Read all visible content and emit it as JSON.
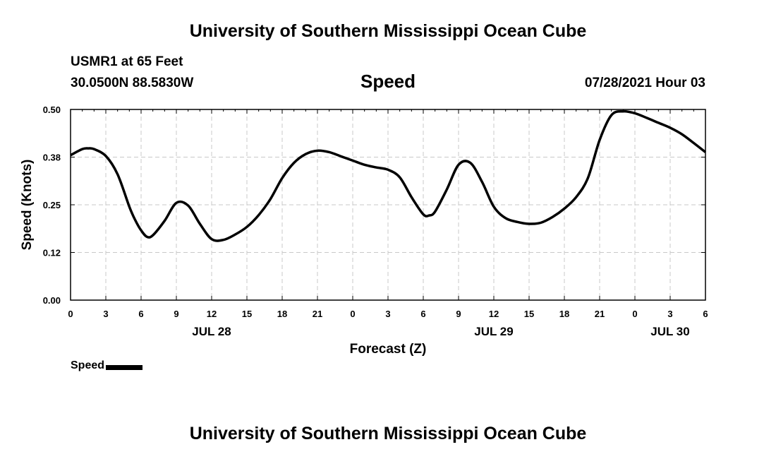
{
  "header": {
    "title": "University of Southern Mississippi Ocean Cube",
    "station": "USMR1 at 65 Feet",
    "coords": "30.0500N  88.5830W",
    "datetime": "07/28/2021 Hour 03"
  },
  "footer": {
    "title": "University of Southern Mississippi Ocean Cube"
  },
  "legend": {
    "label": "Speed",
    "color": "#000000"
  },
  "chart_data": {
    "type": "line",
    "title": "Speed",
    "xlabel": "Forecast (Z)",
    "ylabel": "Speed (Knots)",
    "ylim": [
      0,
      0.5
    ],
    "xlim": [
      0,
      54
    ],
    "y_ticks": [
      {
        "value": 0.0,
        "label": "0.00"
      },
      {
        "value": 0.125,
        "label": "0.12"
      },
      {
        "value": 0.25,
        "label": "0.25"
      },
      {
        "value": 0.375,
        "label": "0.38"
      },
      {
        "value": 0.5,
        "label": "0.50"
      }
    ],
    "x_ticks": [
      {
        "value": 0,
        "label": "0"
      },
      {
        "value": 3,
        "label": "3"
      },
      {
        "value": 6,
        "label": "6"
      },
      {
        "value": 9,
        "label": "9"
      },
      {
        "value": 12,
        "label": "12"
      },
      {
        "value": 15,
        "label": "15"
      },
      {
        "value": 18,
        "label": "18"
      },
      {
        "value": 21,
        "label": "21"
      },
      {
        "value": 24,
        "label": "0"
      },
      {
        "value": 27,
        "label": "3"
      },
      {
        "value": 30,
        "label": "6"
      },
      {
        "value": 33,
        "label": "9"
      },
      {
        "value": 36,
        "label": "12"
      },
      {
        "value": 39,
        "label": "15"
      },
      {
        "value": 42,
        "label": "18"
      },
      {
        "value": 45,
        "label": "21"
      },
      {
        "value": 48,
        "label": "0"
      },
      {
        "value": 51,
        "label": "3"
      },
      {
        "value": 54,
        "label": "6"
      }
    ],
    "day_labels": [
      {
        "value": 12,
        "label": "JUL 28"
      },
      {
        "value": 36,
        "label": "JUL 29"
      },
      {
        "value": 51,
        "label": "JUL 30"
      }
    ],
    "grid": true,
    "series": [
      {
        "name": "Speed",
        "x": [
          0,
          1,
          1.5,
          2,
          3,
          4,
          5,
          5.5,
          6,
          6.5,
          7,
          8,
          9,
          10,
          11,
          12,
          13,
          14,
          15,
          16,
          17,
          18,
          19,
          20,
          21,
          22,
          23,
          24,
          25,
          26,
          27,
          28,
          29,
          30,
          30.5,
          31,
          32,
          33,
          34,
          35,
          36,
          37,
          38,
          39,
          40,
          41,
          42,
          43,
          44,
          45,
          46,
          47,
          48,
          49,
          50,
          51,
          52,
          53,
          54
        ],
        "y": [
          0.38,
          0.396,
          0.398,
          0.396,
          0.378,
          0.33,
          0.245,
          0.21,
          0.183,
          0.166,
          0.17,
          0.208,
          0.255,
          0.248,
          0.2,
          0.16,
          0.158,
          0.172,
          0.192,
          0.223,
          0.265,
          0.32,
          0.36,
          0.383,
          0.392,
          0.388,
          0.377,
          0.366,
          0.355,
          0.348,
          0.342,
          0.322,
          0.27,
          0.225,
          0.222,
          0.232,
          0.29,
          0.355,
          0.36,
          0.31,
          0.245,
          0.215,
          0.205,
          0.2,
          0.203,
          0.218,
          0.24,
          0.27,
          0.32,
          0.42,
          0.485,
          0.495,
          0.49,
          0.478,
          0.465,
          0.452,
          0.435,
          0.412,
          0.388
        ]
      }
    ]
  }
}
